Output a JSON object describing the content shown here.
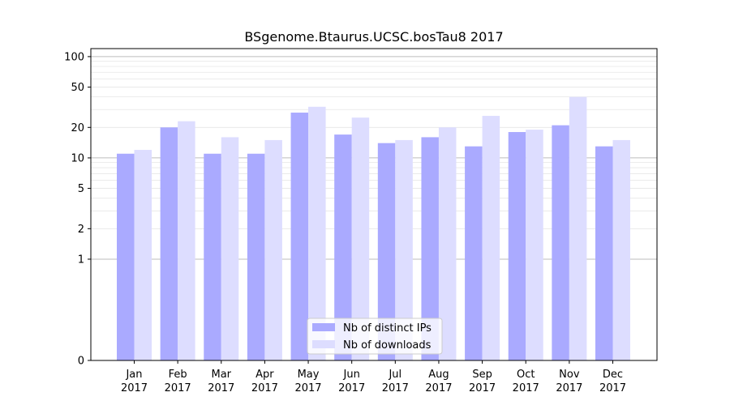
{
  "chart_data": {
    "type": "bar",
    "title": "BSgenome.Btaurus.UCSC.bosTau8 2017",
    "xlabel": "",
    "ylabel": "",
    "y_scale": "symlog",
    "y_ticks": [
      0,
      1,
      2,
      5,
      10,
      20,
      50,
      100
    ],
    "ylim": [
      0,
      120
    ],
    "categories": [
      [
        "Jan",
        "2017"
      ],
      [
        "Feb",
        "2017"
      ],
      [
        "Mar",
        "2017"
      ],
      [
        "Apr",
        "2017"
      ],
      [
        "May",
        "2017"
      ],
      [
        "Jun",
        "2017"
      ],
      [
        "Jul",
        "2017"
      ],
      [
        "Aug",
        "2017"
      ],
      [
        "Sep",
        "2017"
      ],
      [
        "Oct",
        "2017"
      ],
      [
        "Nov",
        "2017"
      ],
      [
        "Dec",
        "2017"
      ]
    ],
    "series": [
      {
        "name": "Nb of distinct IPs",
        "color": "#aaaaff",
        "values": [
          11,
          20,
          11,
          11,
          28,
          17,
          14,
          16,
          13,
          18,
          21,
          13
        ]
      },
      {
        "name": "Nb of downloads",
        "color": "#ddddff",
        "values": [
          12,
          23,
          16,
          15,
          32,
          25,
          15,
          20,
          26,
          19,
          40,
          15
        ]
      }
    ],
    "legend_position": "bottom-center",
    "grid": "horizontal"
  }
}
